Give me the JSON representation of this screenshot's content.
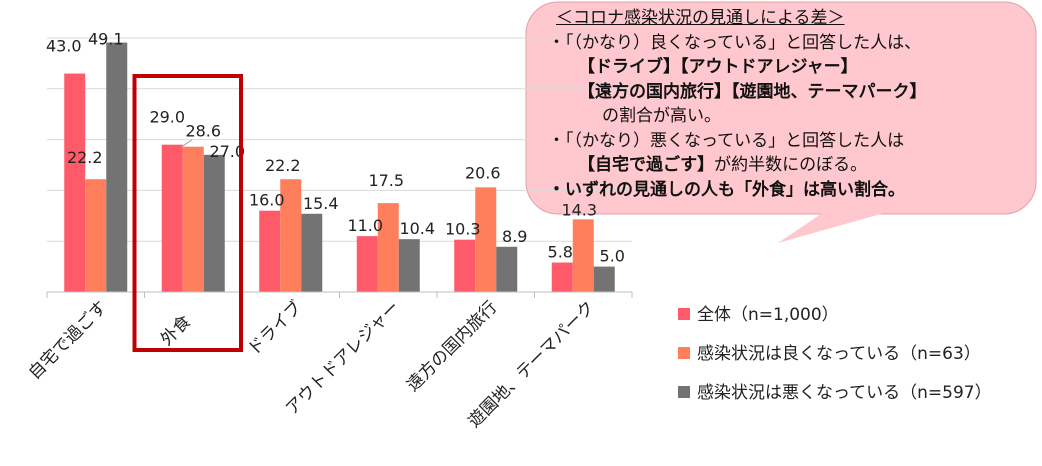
{
  "chart_data": {
    "type": "bar",
    "categories": [
      "自宅で過ごす",
      "外食",
      "ドライブ",
      "アウトドアレジャー",
      "遠方の国内旅行",
      "遊園地、テーマパーク"
    ],
    "series": [
      {
        "name": "全体（n=1,000）",
        "values": [
          43.0,
          29.0,
          16.0,
          11.0,
          10.3,
          5.8
        ],
        "labels": [
          "43.0",
          "29.0",
          "16.0",
          "11.0",
          "10.3",
          "5.8"
        ],
        "color": "#ff5a6a"
      },
      {
        "name": "感染状況は良くなっている（n=63）",
        "values": [
          22.2,
          28.6,
          22.2,
          17.5,
          20.6,
          14.3
        ],
        "labels": [
          "22.2",
          "28.6",
          "22.2",
          "17.5",
          "20.6",
          "14.3"
        ],
        "color": "#ff7f5c"
      },
      {
        "name": "感染状況は悪くなっている（n=597）",
        "values": [
          49.1,
          27.0,
          15.4,
          10.4,
          8.9,
          5.0
        ],
        "labels": [
          "49.1",
          "27.0",
          "15.4",
          "10.4",
          "8.9",
          "5.0"
        ],
        "color": "#737373"
      }
    ],
    "ylim": [
      0,
      50
    ],
    "grid": true,
    "highlight_category": "外食",
    "highlight_color": "#c00000",
    "legend_position": "bottom-right"
  },
  "callout": {
    "title": "＜コロナ感染状況の見通しによる差＞",
    "line1": "・「（かなり）良くなっている」と回答した人は、",
    "line2": "【ドライブ】【アウトドアレジャー】",
    "line3": "【遠方の国内旅行】【遊園地、テーマパーク】",
    "line4": "の割合が高い。",
    "line5": "・「（かなり）悪くなっている」と回答した人は",
    "line6a": "【自宅で過ごす】",
    "line6b": "が約半数にのぼる。",
    "line7": "・いずれの見通しの人も「外食」は高い割合。",
    "fill_color": "#ffc7ce"
  }
}
